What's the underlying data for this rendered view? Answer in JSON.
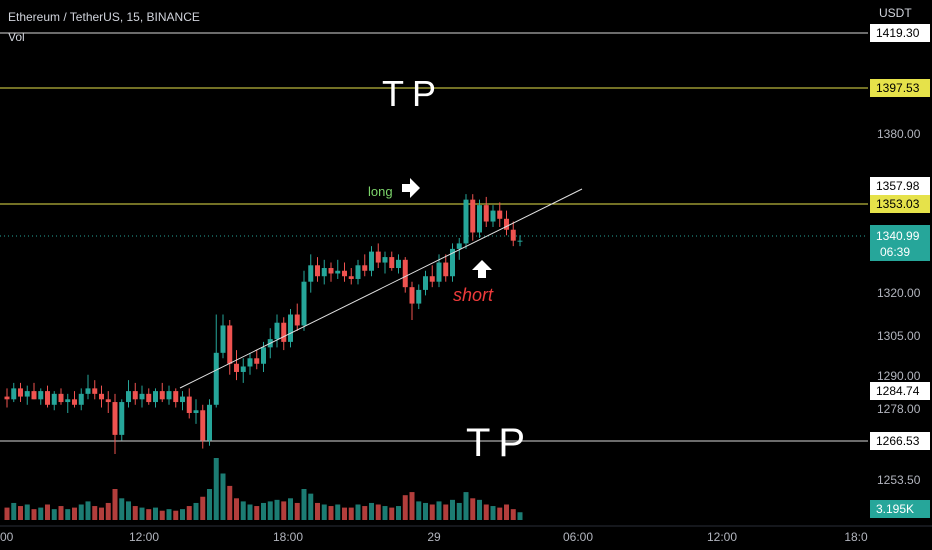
{
  "header": {
    "symbol": "Ethereum / TetherUS, 15, BINANCE",
    "indicator": "Vol"
  },
  "scale": {
    "currency": "USDT"
  },
  "colors": {
    "bull": "#26a69a",
    "bear": "#ef5350",
    "tp": "#ffffff",
    "level": "#e6e24a",
    "last": "#26a69a",
    "axis_text": "#b2b5be"
  },
  "price_axis": {
    "ticks": [
      "1380.00",
      "1320.00",
      "1305.00",
      "1290.00",
      "1278.00",
      "1253.50"
    ],
    "labels": {
      "top_partial": "1419.30",
      "tp_upper": "1397.53",
      "level_a": "1357.98",
      "level_b": "1353.03",
      "last_price": "1340.99",
      "countdown": "06:39",
      "level_c": "1284.74",
      "tp_lower": "1266.53",
      "volume": "3.195K"
    }
  },
  "time_axis": [
    "00",
    "12:00",
    "18:00",
    "29",
    "06:00",
    "12:00",
    "18:0"
  ],
  "annotations": {
    "tp_top": "TP",
    "tp_bottom": "TP",
    "long": "long",
    "short": "short"
  },
  "chart_data": {
    "type": "candlestick",
    "title": "Ethereum / TetherUS, 15, BINANCE",
    "interval": "15",
    "y_unit": "USDT",
    "levels": [
      1419.3,
      1397.53,
      1357.98,
      1353.03,
      1284.74,
      1266.53
    ],
    "last_price": 1340.99,
    "last_volume": "3.195K",
    "trendline": {
      "from": [
        1284,
        "~13:00"
      ],
      "to": [
        1360,
        "~03:00 (29)"
      ]
    },
    "candles": [
      [
        1284,
        1287,
        1280,
        1283,
        0.4
      ],
      [
        1283,
        1289,
        1282,
        1287,
        0.55
      ],
      [
        1287,
        1289,
        1282,
        1284,
        0.45
      ],
      [
        1284,
        1288,
        1281,
        1286,
        0.5
      ],
      [
        1286,
        1289,
        1283,
        1283,
        0.35
      ],
      [
        1283,
        1287,
        1281,
        1286,
        0.4
      ],
      [
        1286,
        1288,
        1280,
        1281,
        0.5
      ],
      [
        1281,
        1286,
        1279,
        1285,
        0.35
      ],
      [
        1285,
        1287,
        1281,
        1282,
        0.45
      ],
      [
        1282,
        1285,
        1278,
        1283,
        0.35
      ],
      [
        1283,
        1286,
        1280,
        1281,
        0.4
      ],
      [
        1281,
        1287,
        1279,
        1285,
        0.5
      ],
      [
        1285,
        1292,
        1283,
        1287,
        0.6
      ],
      [
        1287,
        1290,
        1283,
        1285,
        0.45
      ],
      [
        1285,
        1288,
        1280,
        1283,
        0.4
      ],
      [
        1283,
        1286,
        1278,
        1282,
        0.55
      ],
      [
        1282,
        1285,
        1263,
        1270,
        1.0
      ],
      [
        1270,
        1283,
        1268,
        1282,
        0.7
      ],
      [
        1282,
        1290,
        1280,
        1286,
        0.6
      ],
      [
        1286,
        1289,
        1281,
        1283,
        0.45
      ],
      [
        1283,
        1288,
        1280,
        1285,
        0.4
      ],
      [
        1285,
        1287,
        1281,
        1282,
        0.35
      ],
      [
        1282,
        1287,
        1280,
        1286,
        0.4
      ],
      [
        1286,
        1289,
        1282,
        1283,
        0.3
      ],
      [
        1283,
        1288,
        1281,
        1286,
        0.35
      ],
      [
        1286,
        1287,
        1280,
        1282,
        0.3
      ],
      [
        1282,
        1286,
        1279,
        1284,
        0.35
      ],
      [
        1284,
        1287,
        1276,
        1278,
        0.45
      ],
      [
        1278,
        1283,
        1274,
        1279,
        0.55
      ],
      [
        1279,
        1281,
        1265,
        1268,
        0.75
      ],
      [
        1268,
        1283,
        1266,
        1281,
        1.0
      ],
      [
        1281,
        1314,
        1280,
        1300,
        2.0
      ],
      [
        1300,
        1314,
        1298,
        1310,
        1.5
      ],
      [
        1310,
        1312,
        1292,
        1296,
        1.1
      ],
      [
        1296,
        1301,
        1290,
        1293,
        0.7
      ],
      [
        1293,
        1298,
        1289,
        1295,
        0.6
      ],
      [
        1295,
        1300,
        1292,
        1298,
        0.5
      ],
      [
        1298,
        1301,
        1294,
        1296,
        0.45
      ],
      [
        1296,
        1304,
        1293,
        1302,
        0.55
      ],
      [
        1302,
        1309,
        1298,
        1305,
        0.6
      ],
      [
        1305,
        1314,
        1302,
        1311,
        0.65
      ],
      [
        1311,
        1313,
        1301,
        1304,
        0.6
      ],
      [
        1304,
        1316,
        1302,
        1314,
        0.7
      ],
      [
        1314,
        1318,
        1308,
        1310,
        0.55
      ],
      [
        1310,
        1330,
        1308,
        1326,
        1.0
      ],
      [
        1326,
        1336,
        1322,
        1332,
        0.85
      ],
      [
        1332,
        1335,
        1326,
        1328,
        0.55
      ],
      [
        1328,
        1334,
        1325,
        1331,
        0.5
      ],
      [
        1331,
        1333,
        1326,
        1329,
        0.45
      ],
      [
        1329,
        1334,
        1327,
        1330,
        0.5
      ],
      [
        1330,
        1333,
        1326,
        1328,
        0.4
      ],
      [
        1328,
        1331,
        1325,
        1327,
        0.4
      ],
      [
        1327,
        1334,
        1325,
        1332,
        0.5
      ],
      [
        1332,
        1336,
        1328,
        1330,
        0.45
      ],
      [
        1330,
        1339,
        1328,
        1337,
        0.55
      ],
      [
        1337,
        1340,
        1331,
        1333,
        0.5
      ],
      [
        1333,
        1337,
        1329,
        1335,
        0.45
      ],
      [
        1335,
        1337,
        1330,
        1331,
        0.4
      ],
      [
        1331,
        1336,
        1329,
        1334,
        0.45
      ],
      [
        1334,
        1335,
        1322,
        1324,
        0.8
      ],
      [
        1324,
        1326,
        1312,
        1318,
        0.9
      ],
      [
        1318,
        1325,
        1316,
        1323,
        0.6
      ],
      [
        1323,
        1330,
        1321,
        1328,
        0.55
      ],
      [
        1328,
        1332,
        1324,
        1326,
        0.5
      ],
      [
        1326,
        1336,
        1324,
        1333,
        0.6
      ],
      [
        1333,
        1336,
        1326,
        1328,
        0.5
      ],
      [
        1328,
        1340,
        1326,
        1338,
        0.65
      ],
      [
        1338,
        1342,
        1334,
        1340,
        0.55
      ],
      [
        1340,
        1358,
        1338,
        1356,
        0.9
      ],
      [
        1356,
        1358,
        1341,
        1344,
        0.7
      ],
      [
        1344,
        1356,
        1342,
        1354,
        0.65
      ],
      [
        1354,
        1357,
        1346,
        1348,
        0.5
      ],
      [
        1348,
        1354,
        1346,
        1352,
        0.45
      ],
      [
        1352,
        1355,
        1346,
        1349,
        0.4
      ],
      [
        1349,
        1352,
        1343,
        1345,
        0.5
      ],
      [
        1345,
        1348,
        1339,
        1341,
        0.35
      ],
      [
        1341,
        1343,
        1339,
        1341,
        0.25
      ]
    ]
  }
}
